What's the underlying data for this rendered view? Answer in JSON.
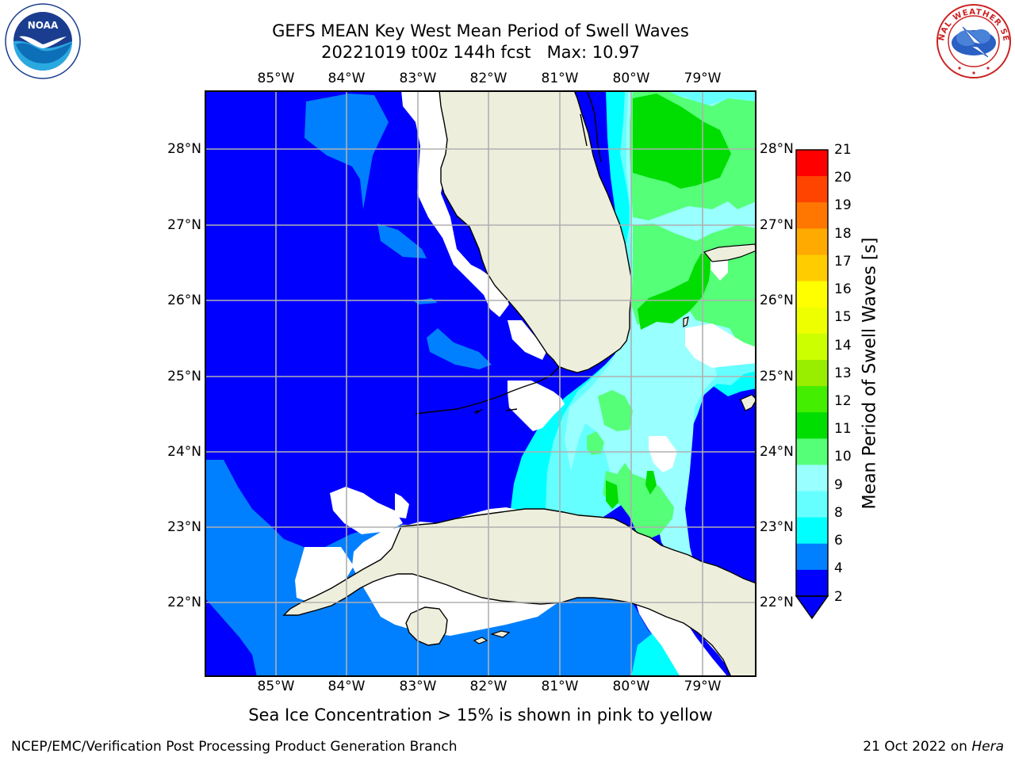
{
  "title": {
    "line1": "GEFS MEAN Key West Mean Period of Swell Waves",
    "line2": "20221019 t00z 144h fcst   Max: 10.97"
  },
  "map": {
    "lon_labels": [
      "85°W",
      "84°W",
      "83°W",
      "82°W",
      "81°W",
      "80°W",
      "79°W"
    ],
    "lat_labels": [
      "28°N",
      "27°N",
      "26°N",
      "25°N",
      "24°N",
      "23°N",
      "22°N"
    ],
    "extent": {
      "lon": [
        -86,
        -78.3
      ],
      "lat": [
        21.05,
        28.75
      ]
    },
    "land_color": "#eeeedd",
    "gridline_color": "#b0b0b0"
  },
  "colorbar": {
    "label": "Mean Period of Swell Waves [s]",
    "ticks": [
      "21",
      "20",
      "19",
      "18",
      "17",
      "16",
      "15",
      "14",
      "13",
      "12",
      "11",
      "10",
      "9",
      "8",
      "6",
      "4",
      "2"
    ],
    "levels": [
      {
        "min": 2,
        "max": 4,
        "color": "#0000ff"
      },
      {
        "min": 4,
        "max": 6,
        "color": "#0080ff"
      },
      {
        "min": 6,
        "max": 7,
        "color": "#00ffff"
      },
      {
        "min": 7,
        "max": 8,
        "color": "#66ffff"
      },
      {
        "min": 8,
        "max": 9,
        "color": "#99ffff"
      },
      {
        "min": 9,
        "max": 10,
        "color": "#55ff77"
      },
      {
        "min": 10,
        "max": 11,
        "color": "#00dd00"
      },
      {
        "min": 11,
        "max": 12,
        "color": "#44ee00"
      },
      {
        "min": 12,
        "max": 13,
        "color": "#99ee00"
      },
      {
        "min": 13,
        "max": 14,
        "color": "#ccff00"
      },
      {
        "min": 14,
        "max": 15,
        "color": "#eeff00"
      },
      {
        "min": 15,
        "max": 16,
        "color": "#ffff00"
      },
      {
        "min": 16,
        "max": 17,
        "color": "#ffcc00"
      },
      {
        "min": 17,
        "max": 18,
        "color": "#ffaa00"
      },
      {
        "min": 18,
        "max": 19,
        "color": "#ff7700"
      },
      {
        "min": 19,
        "max": 20,
        "color": "#ff4400"
      },
      {
        "min": 20,
        "max": 21,
        "color": "#ff0000"
      }
    ],
    "under_color": "#0000ff"
  },
  "note": "Sea Ice Concentration > 15% is shown in pink to yellow",
  "footer": {
    "left": "NCEP/EMC/Verification Post Processing Product Generation Branch",
    "date": "21 Oct 2022 on ",
    "machine": "Hera"
  },
  "logos": {
    "noaa_text": "NOAA",
    "nws_text": "NATIONAL WEATHER SERVICE"
  }
}
